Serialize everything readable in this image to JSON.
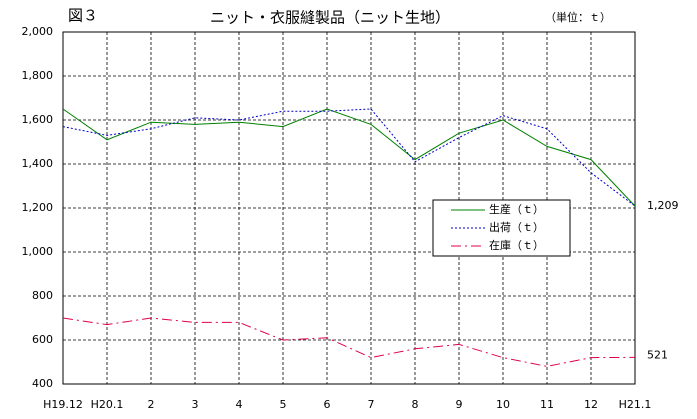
{
  "chart_data": {
    "type": "line",
    "figure_label": "図３",
    "title": "ニット・衣服縫製品（ニット生地）",
    "unit": "（単位：ｔ）",
    "categories": [
      "H19.12",
      "H20.1",
      "2",
      "3",
      "4",
      "5",
      "6",
      "7",
      "8",
      "9",
      "10",
      "11",
      "12",
      "H21.1"
    ],
    "series": [
      {
        "name": "生産（ｔ）",
        "color": "#008000",
        "dash": "solid",
        "values": [
          1650,
          1510,
          1590,
          1580,
          1590,
          1570,
          1650,
          1580,
          1420,
          1540,
          1600,
          1480,
          1420,
          1209
        ],
        "value_labels": [
          null,
          null,
          null,
          null,
          null,
          null,
          null,
          null,
          null,
          null,
          null,
          null,
          null,
          "1,209"
        ]
      },
      {
        "name": "出荷（ｔ）",
        "color": "#0000cc",
        "dash": "dotted",
        "values": [
          1570,
          1530,
          1560,
          1610,
          1600,
          1640,
          1640,
          1650,
          1410,
          1520,
          1620,
          1560,
          1360,
          1209
        ]
      },
      {
        "name": "在庫（ｔ）",
        "color": "#e0004a",
        "dash": "dashed",
        "values": [
          700,
          670,
          700,
          680,
          680,
          600,
          610,
          520,
          560,
          580,
          520,
          480,
          520,
          521
        ],
        "end_label": true
      }
    ],
    "ylim": [
      400,
      2000
    ],
    "yticks": [
      400,
      600,
      800,
      {
        "value": 1000,
        "label": "1,000"
      },
      {
        "value": 1200,
        "label": "1,200"
      },
      {
        "value": 1400,
        "label": "1,400"
      },
      {
        "value": 1600,
        "label": "1,600"
      },
      {
        "value": 1800,
        "label": "1,800"
      },
      {
        "value": 2000,
        "label": "2,000"
      }
    ],
    "grid": true,
    "legend": "right"
  }
}
